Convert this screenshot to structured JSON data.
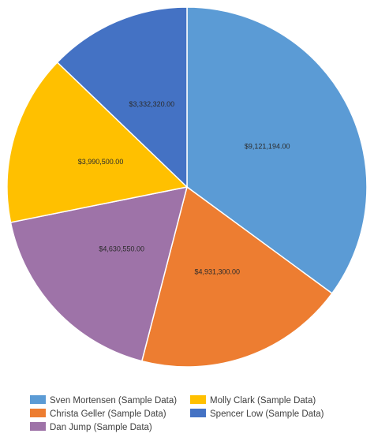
{
  "chart_data": {
    "type": "pie",
    "categories": [
      "Sven Mortensen (Sample Data)",
      "Christa Geller (Sample Data)",
      "Dan Jump (Sample Data)",
      "Molly Clark (Sample Data)",
      "Spencer Low (Sample Data)"
    ],
    "values": [
      9121194.0,
      4931300.0,
      4630550.0,
      3990500.0,
      3332320.0
    ],
    "data_labels": [
      "$9,121,194.00",
      "$4,931,300.00",
      "$4,630,550.00",
      "$3,990,500.00",
      "$3,332,320.00"
    ],
    "colors": [
      "#5b9bd5",
      "#ed7d31",
      "#9e73a8",
      "#ffc000",
      "#4472c4"
    ],
    "start_angle_deg": 90,
    "direction": "clockwise",
    "legend": {
      "placement": "bottom",
      "columns": 2,
      "order": [
        0,
        3,
        1,
        4,
        2
      ]
    }
  }
}
